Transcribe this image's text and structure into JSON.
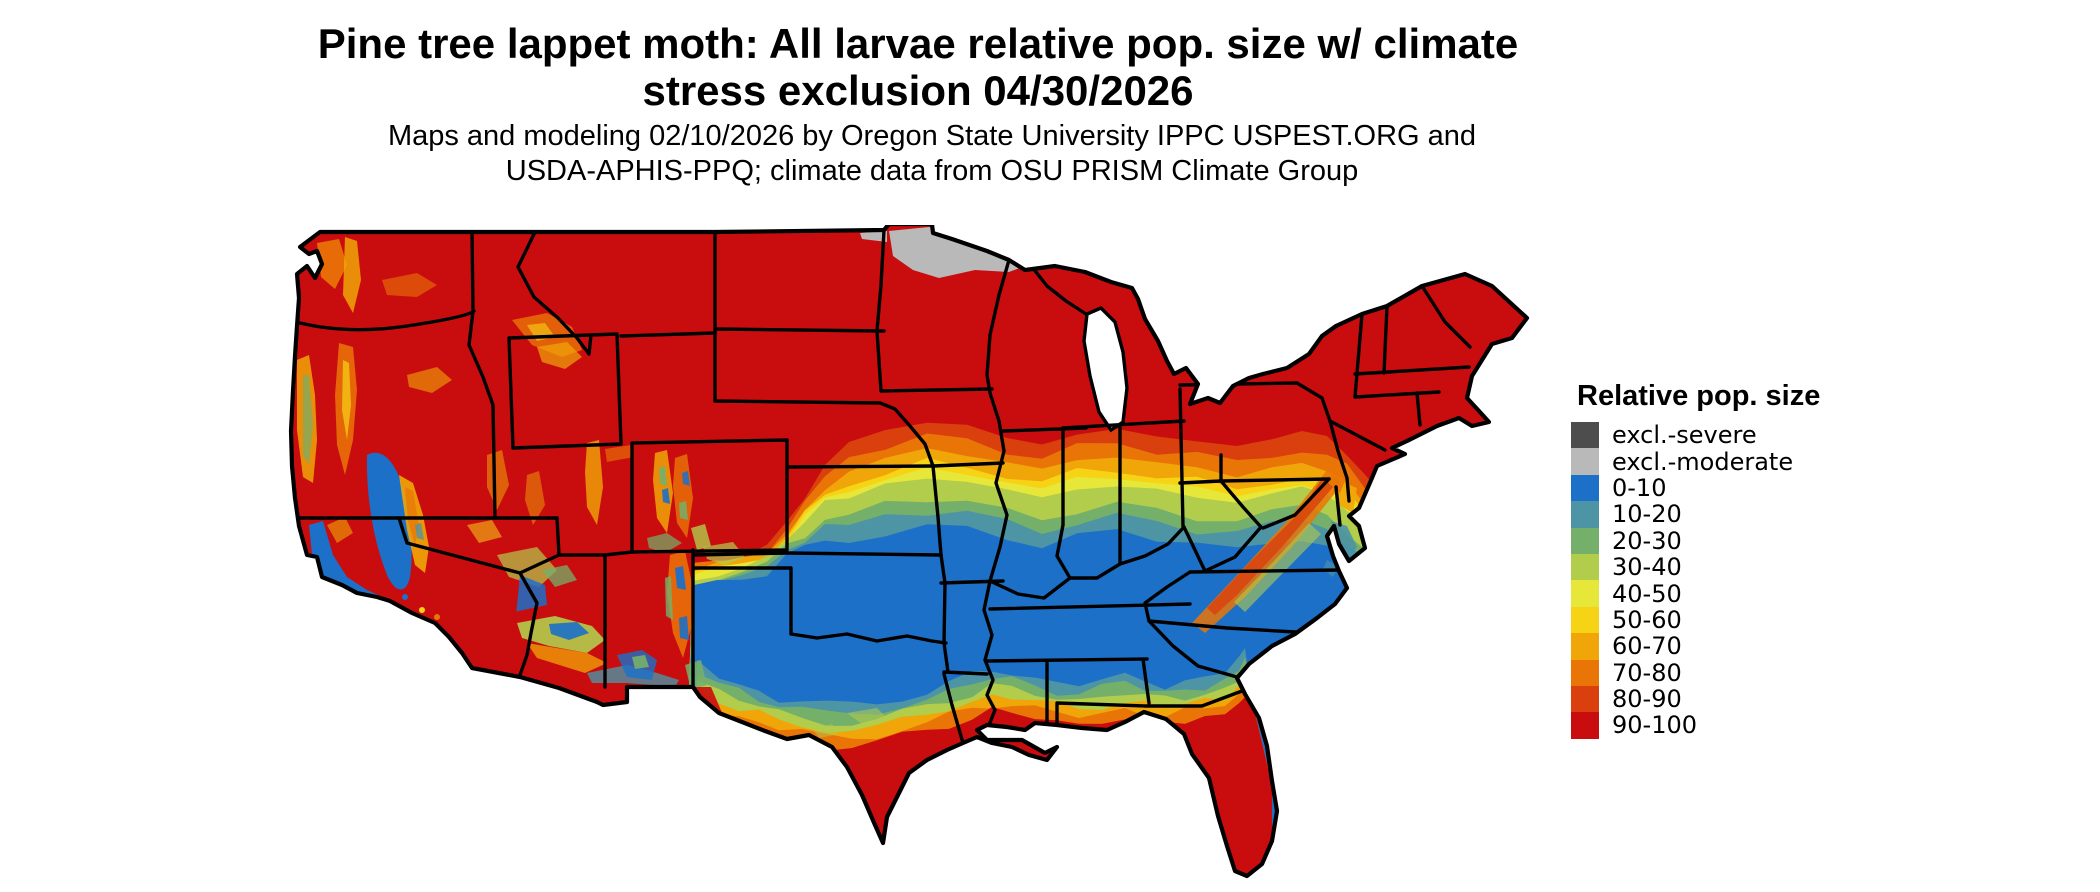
{
  "header": {
    "title_line1": "Pine tree lappet moth: All larvae relative pop. size w/ climate",
    "title_line2": "stress exclusion 04/30/2026",
    "subtitle_line1": "Maps and modeling 02/10/2026 by Oregon State University IPPC USPEST.ORG and",
    "subtitle_line2": "USDA-APHIS-PPQ; climate data from OSU PRISM Climate Group"
  },
  "legend": {
    "title": "Relative pop. size",
    "items": [
      {
        "label": "excl.-severe",
        "color": "#4d4d4d"
      },
      {
        "label": "excl.-moderate",
        "color": "#b9b9b9"
      },
      {
        "label": "0-10",
        "color": "#1c70c8"
      },
      {
        "label": "10-20",
        "color": "#4d94a5"
      },
      {
        "label": "20-30",
        "color": "#74b06a"
      },
      {
        "label": "30-40",
        "color": "#b2cc4c"
      },
      {
        "label": "40-50",
        "color": "#e7e73a"
      },
      {
        "label": "50-60",
        "color": "#f6d415"
      },
      {
        "label": "60-70",
        "color": "#f0a608"
      },
      {
        "label": "70-80",
        "color": "#ea7507"
      },
      {
        "label": "80-90",
        "color": "#d9400d"
      },
      {
        "label": "90-100",
        "color": "#c90d0e"
      }
    ]
  },
  "chart_data": {
    "type": "heatmap",
    "map_region": "Contiguous United States with state boundaries",
    "variable": "Relative pop. size",
    "model_date_shown": "04/30/2026",
    "title": "Pine tree lappet moth: All larvae relative pop. size w/ climate stress exclusion 04/30/2026",
    "subtitle": "Maps and modeling 02/10/2026 by Oregon State University IPPC USPEST.ORG and USDA-APHIS-PPQ; climate data from OSU PRISM Climate Group",
    "legend_position": "right",
    "scale_categories": [
      "excl.-severe",
      "excl.-moderate",
      "0-10",
      "10-20",
      "20-30",
      "30-40",
      "40-50",
      "50-60",
      "60-70",
      "70-80",
      "80-90",
      "90-100"
    ],
    "regional_values": {
      "northern_tier_and_interior_west": "90-100",
      "northern_minnesota": "excl.-moderate",
      "midlatitude_transition_band_iowa_to_pennsylvania": "80-90 down through 10-20 descending southward",
      "south_central_and_southeast_interior": "0-10",
      "gulf_coast_louisiana_mississippi_alabama": "90-100",
      "florida_peninsula": "90-100",
      "south_texas": "90-100",
      "california_central_valley_and_south_coast": "0-10",
      "sierra_cascades_rockies_mountain_areas": "mixed 30-80",
      "appalachian_ridge_wv_va_nc": "70-100 streak",
      "arizona_mogollon_rim_and_nm_highlands": "0-40 patches"
    }
  }
}
